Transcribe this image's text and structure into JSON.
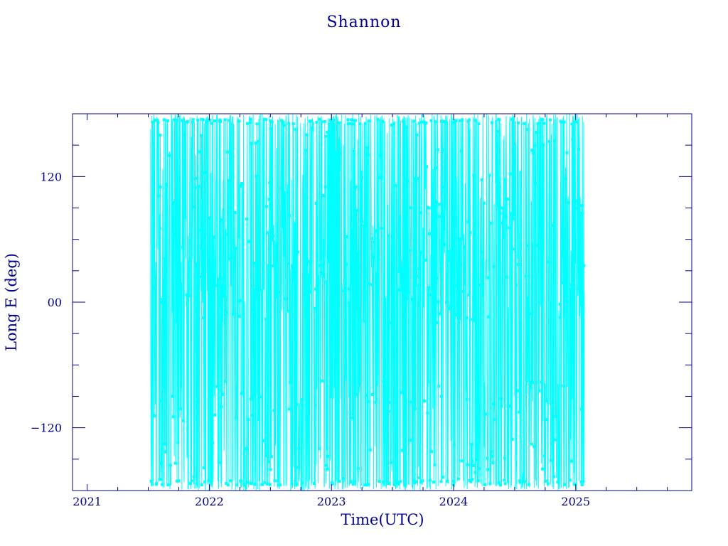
{
  "chart_data": {
    "type": "line",
    "title": "Shannon",
    "xlabel": "Time(UTC)",
    "ylabel": "Long E (deg)",
    "xlim": [
      2020.88,
      2025.95
    ],
    "ylim": [
      -180,
      180
    ],
    "x_ticks": [
      {
        "value": 2021,
        "label": "2021"
      },
      {
        "value": 2022,
        "label": "2022"
      },
      {
        "value": 2023,
        "label": "2023"
      },
      {
        "value": 2024,
        "label": "2024"
      },
      {
        "value": 2025,
        "label": "2025"
      }
    ],
    "y_ticks": [
      {
        "value": 120,
        "label": "120"
      },
      {
        "value": 0,
        "label": "00"
      },
      {
        "value": -120,
        "label": "−120"
      }
    ],
    "grid": false,
    "colors": {
      "series": "#00ffff",
      "axes": "#00008b"
    },
    "series": [
      {
        "marker": "square",
        "x_range": [
          2021.52,
          2025.07
        ],
        "y_range": [
          -180,
          180
        ],
        "x": [
          2021.52,
          2021.6,
          2021.7,
          2021.8,
          2021.9,
          2022.0,
          2022.1,
          2022.2,
          2022.3,
          2022.4,
          2022.5,
          2022.6,
          2022.7,
          2022.8,
          2022.9,
          2023.0,
          2023.1,
          2023.2,
          2023.3,
          2023.4,
          2023.5,
          2023.6,
          2023.7,
          2023.8,
          2023.9,
          2024.0,
          2024.1,
          2024.2,
          2024.3,
          2024.4,
          2024.5,
          2024.6,
          2024.7,
          2024.8,
          2024.9,
          2025.0,
          2025.07
        ],
        "y": [
          -15,
          110,
          -90,
          160,
          -95,
          80,
          -100,
          170,
          -140,
          90,
          -160,
          120,
          -85,
          160,
          70,
          -90,
          150,
          110,
          -95,
          140,
          60,
          -100,
          160,
          90,
          -90,
          75,
          -100,
          110,
          -95,
          90,
          -90,
          165,
          -85,
          160,
          -80,
          90,
          10
        ]
      }
    ]
  }
}
